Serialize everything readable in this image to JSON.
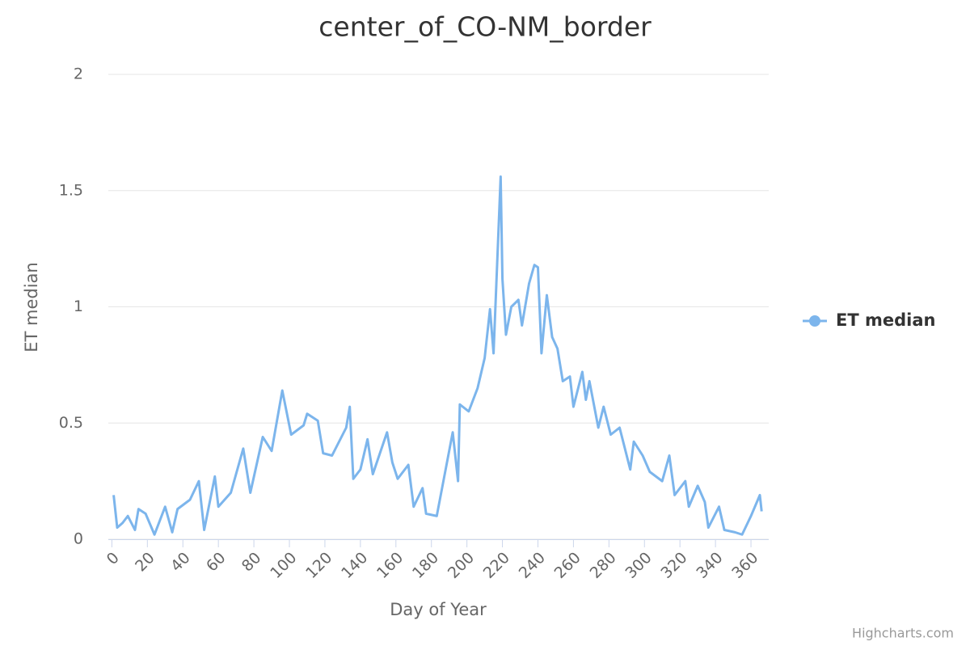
{
  "chart_data": {
    "type": "line",
    "title": "center_of_CO-NM_border",
    "x_label": "Day of Year",
    "y_label": "ET median",
    "credits": "Highcharts.com",
    "xlim": [
      -2,
      370
    ],
    "xticks": [
      0,
      20,
      40,
      60,
      80,
      100,
      120,
      140,
      160,
      180,
      200,
      220,
      240,
      260,
      280,
      300,
      320,
      340,
      360
    ],
    "ylim": [
      0,
      2
    ],
    "yticks": [
      0,
      0.5,
      1,
      1.5,
      2
    ],
    "grid": true,
    "legend": "right",
    "x": [
      1,
      3,
      6,
      9,
      13,
      15,
      19,
      24,
      30,
      34,
      37,
      44,
      49,
      52,
      58,
      60,
      67,
      74,
      78,
      85,
      90,
      96,
      101,
      108,
      110,
      116,
      119,
      124,
      132,
      134,
      136,
      140,
      144,
      147,
      155,
      158,
      161,
      167,
      170,
      175,
      177,
      183,
      186,
      192,
      195,
      196,
      201,
      206,
      210,
      213,
      215,
      219,
      220,
      222,
      225,
      229,
      231,
      235,
      238,
      240,
      242,
      245,
      248,
      251,
      254,
      258,
      260,
      265,
      267,
      269,
      274,
      277,
      281,
      286,
      292,
      294,
      299,
      303,
      310,
      314,
      317,
      323,
      325,
      330,
      334,
      336,
      342,
      345,
      351,
      355,
      360,
      365,
      366
    ],
    "series": [
      {
        "name": "ET median",
        "color": "#7cb5ec",
        "values": [
          0.19,
          0.05,
          0.07,
          0.1,
          0.04,
          0.13,
          0.11,
          0.02,
          0.14,
          0.03,
          0.13,
          0.17,
          0.25,
          0.04,
          0.27,
          0.14,
          0.2,
          0.39,
          0.2,
          0.44,
          0.38,
          0.64,
          0.45,
          0.49,
          0.54,
          0.51,
          0.37,
          0.36,
          0.48,
          0.57,
          0.26,
          0.3,
          0.43,
          0.28,
          0.46,
          0.33,
          0.26,
          0.32,
          0.14,
          0.22,
          0.11,
          0.1,
          0.22,
          0.46,
          0.25,
          0.58,
          0.55,
          0.65,
          0.78,
          0.99,
          0.8,
          1.56,
          1.12,
          0.88,
          1.0,
          1.03,
          0.92,
          1.1,
          1.18,
          1.17,
          0.8,
          1.05,
          0.87,
          0.82,
          0.68,
          0.7,
          0.57,
          0.72,
          0.6,
          0.68,
          0.48,
          0.57,
          0.45,
          0.48,
          0.3,
          0.42,
          0.36,
          0.29,
          0.25,
          0.36,
          0.19,
          0.25,
          0.14,
          0.23,
          0.16,
          0.05,
          0.14,
          0.04,
          0.03,
          0.02,
          0.1,
          0.19,
          0.12
        ]
      }
    ]
  }
}
